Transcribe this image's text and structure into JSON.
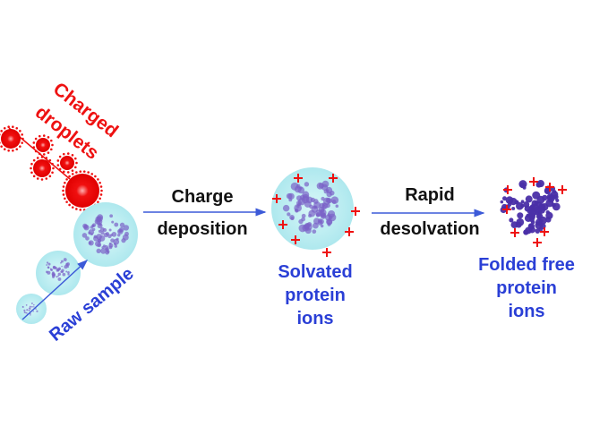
{
  "labels": {
    "charged_droplets": [
      "Charged",
      "droplets"
    ],
    "raw_sample": "Raw sample",
    "step1": [
      "Charge",
      "deposition"
    ],
    "step2": [
      "Rapid",
      "desolvation"
    ],
    "solvated": [
      "Solvated",
      "protein",
      "ions"
    ],
    "folded": [
      "Folded free",
      "protein",
      "ions"
    ]
  },
  "colors": {
    "red": "#ee1111",
    "blue": "#2a3fd6",
    "black": "#111111",
    "bubble": "#bfeff2",
    "protein": "#5a3fb0",
    "arrow": "#3c5ad8"
  }
}
